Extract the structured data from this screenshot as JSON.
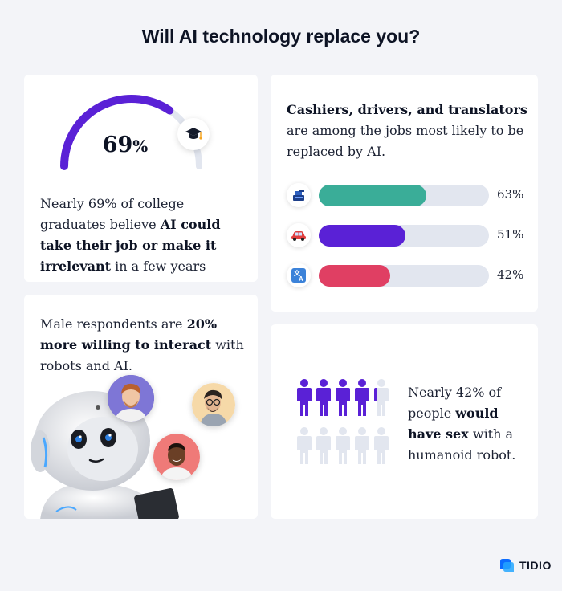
{
  "title": "Will AI technology replace you?",
  "card1": {
    "gauge_value": "69",
    "gauge_unit": "%",
    "gauge_fraction": 0.69,
    "badge_icon": "graduation-cap-icon",
    "text_1": "Nearly 69% of college graduates believe ",
    "text_bold": "AI could take their job or make it irrelevant",
    "text_2": " in a few years"
  },
  "card2": {
    "text_bold": "Cashiers, drivers, and translators",
    "text_1": " are among the jobs most likely to be replaced by AI.",
    "bars": [
      {
        "icon": "cash-register-icon",
        "value": 63,
        "label": "63%",
        "color": "#3aad98"
      },
      {
        "icon": "car-icon",
        "value": 51,
        "label": "51%",
        "color": "#5a21d6"
      },
      {
        "icon": "translate-icon",
        "value": 42,
        "label": "42%",
        "color": "#e03f63"
      }
    ]
  },
  "card3": {
    "text_1": "Male respondents are ",
    "text_bold": "20% more willing to interact",
    "text_2": " with robots and AI."
  },
  "card4": {
    "text_1": "Nearly 42% of people ",
    "text_bold": "would have sex",
    "text_2": " with a humanoid robot.",
    "people_filled": 4.2,
    "people_total": 10,
    "filled_color": "#5a21d6",
    "empty_color": "#e2e6ef"
  },
  "logo": {
    "text": "TIDIO"
  }
}
